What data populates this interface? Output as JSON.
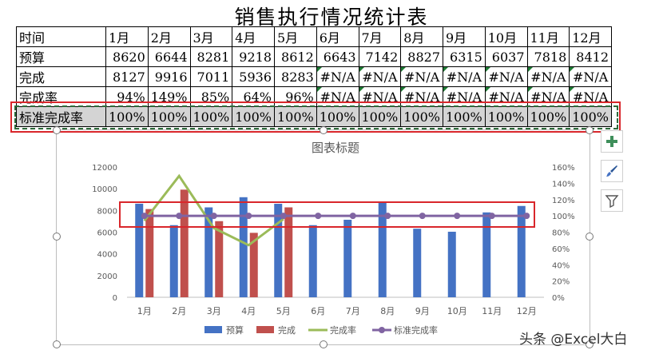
{
  "sheet": {
    "title": "销售执行情况统计表",
    "header_label": "时间",
    "months": [
      "1月",
      "2月",
      "3月",
      "4月",
      "5月",
      "6月",
      "7月",
      "8月",
      "9月",
      "10月",
      "11月",
      "12月"
    ],
    "rows": [
      {
        "label": "预算",
        "values": [
          "8620",
          "6644",
          "8281",
          "9218",
          "8612",
          "6643",
          "7142",
          "8827",
          "6315",
          "6037",
          "7818",
          "8412"
        ]
      },
      {
        "label": "完成",
        "values": [
          "8127",
          "9916",
          "7011",
          "5936",
          "8283",
          "#N/A",
          "#N/A",
          "#N/A",
          "#N/A",
          "#N/A",
          "#N/A",
          "#N/A"
        ]
      },
      {
        "label": "完成率",
        "values": [
          "94%",
          "149%",
          "85%",
          "64%",
          "96%",
          "#N/A",
          "#N/A",
          "#N/A",
          "#N/A",
          "#N/A",
          "#N/A",
          "#N/A"
        ]
      },
      {
        "label": "标准完成率",
        "values": [
          "100%",
          "100%",
          "100%",
          "100%",
          "100%",
          "100%",
          "100%",
          "100%",
          "100%",
          "100%",
          "100%",
          "100%"
        ]
      }
    ]
  },
  "chart_data": {
    "type": "bar",
    "title": "图表标题",
    "categories": [
      "1月",
      "2月",
      "3月",
      "4月",
      "5月",
      "6月",
      "7月",
      "8月",
      "9月",
      "10月",
      "11月",
      "12月"
    ],
    "series": [
      {
        "name": "预算",
        "kind": "bar",
        "axis": "left",
        "color": "#4472c4",
        "values": [
          8620,
          6644,
          8281,
          9218,
          8612,
          6643,
          7142,
          8827,
          6315,
          6037,
          7818,
          8412
        ]
      },
      {
        "name": "完成",
        "kind": "bar",
        "axis": "left",
        "color": "#c0504d",
        "values": [
          8127,
          9916,
          7011,
          5936,
          8283,
          null,
          null,
          null,
          null,
          null,
          null,
          null
        ]
      },
      {
        "name": "完成率",
        "kind": "line",
        "axis": "right",
        "color": "#9bbb59",
        "values": [
          0.94,
          1.49,
          0.85,
          0.64,
          0.96,
          null,
          null,
          null,
          null,
          null,
          null,
          null
        ]
      },
      {
        "name": "标准完成率",
        "kind": "line",
        "axis": "right",
        "color": "#8064a2",
        "values": [
          1,
          1,
          1,
          1,
          1,
          1,
          1,
          1,
          1,
          1,
          1,
          1
        ]
      }
    ],
    "left_axis": {
      "min": 0,
      "max": 12000,
      "step": 2000,
      "ticks": [
        "0",
        "2000",
        "4000",
        "6000",
        "8000",
        "10000",
        "12000"
      ]
    },
    "right_axis": {
      "min": 0,
      "max": 1.6,
      "step": 0.2,
      "ticks": [
        "0%",
        "20%",
        "40%",
        "60%",
        "80%",
        "100%",
        "120%",
        "140%",
        "160%"
      ]
    },
    "legend_position": "bottom",
    "grid": false
  },
  "side_buttons": [
    {
      "name": "chart-elements-button",
      "icon": "plus-icon"
    },
    {
      "name": "chart-styles-button",
      "icon": "brush-icon"
    },
    {
      "name": "chart-filters-button",
      "icon": "filter-icon"
    }
  ],
  "watermark": "头条 @Excel大白"
}
